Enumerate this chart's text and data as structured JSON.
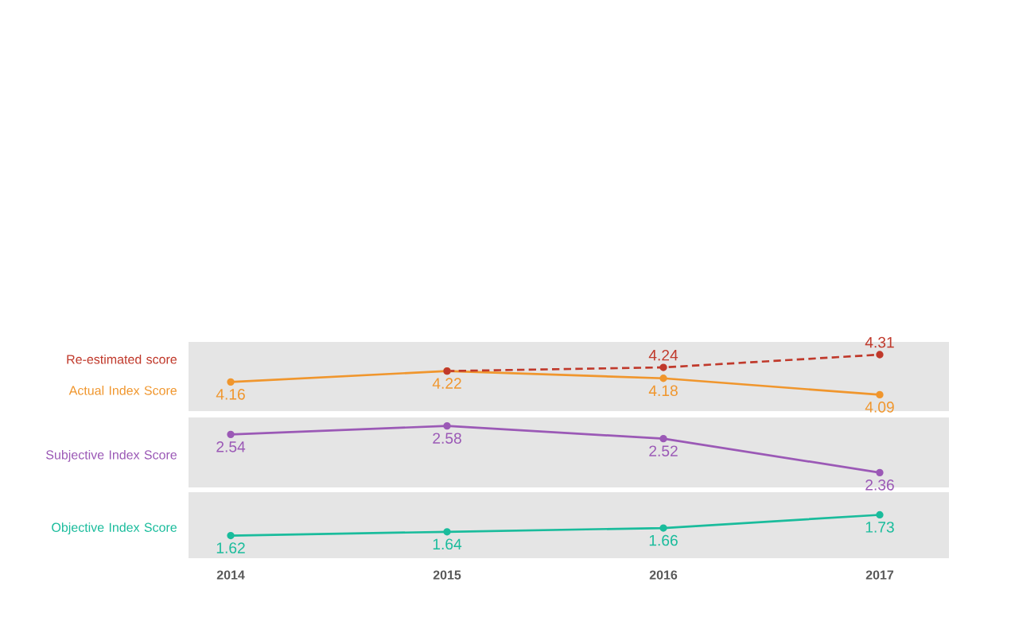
{
  "chart_data": [
    {
      "type": "line",
      "categories": [
        "2014",
        "2015",
        "2016",
        "2017"
      ],
      "ylim": [
        4.0,
        4.38
      ],
      "tick_labels": false,
      "marker": "circle",
      "series": [
        {
          "name": "Re-estimated score",
          "color": "#c0392b",
          "line_style": "dashed",
          "values": [
            null,
            4.22,
            4.24,
            4.31
          ],
          "value_labels": [
            null,
            null,
            "4.24",
            "4.31"
          ]
        },
        {
          "name": "Actual Index Score",
          "color": "#f0962d",
          "line_style": "solid",
          "values": [
            4.16,
            4.22,
            4.18,
            4.09
          ],
          "value_labels": [
            "4.16",
            "4.22",
            "4.18",
            "4.09"
          ]
        }
      ]
    },
    {
      "type": "line",
      "categories": [
        "2014",
        "2015",
        "2016",
        "2017"
      ],
      "ylim": [
        2.29,
        2.62
      ],
      "tick_labels": false,
      "marker": "circle",
      "series": [
        {
          "name": "Subjective Index Score",
          "color": "#9b59b6",
          "line_style": "solid",
          "values": [
            2.54,
            2.58,
            2.52,
            2.36
          ],
          "value_labels": [
            "2.54",
            "2.58",
            "2.52",
            "2.36"
          ]
        }
      ]
    },
    {
      "type": "line",
      "categories": [
        "2014",
        "2015",
        "2016",
        "2017"
      ],
      "ylim": [
        1.5,
        1.85
      ],
      "tick_labels": "x",
      "marker": "circle",
      "series": [
        {
          "name": "Objective Index Score",
          "color": "#1abc9c",
          "line_style": "solid",
          "values": [
            1.62,
            1.64,
            1.66,
            1.73
          ],
          "value_labels": [
            "1.62",
            "1.64",
            "1.66",
            "1.73"
          ]
        }
      ]
    }
  ]
}
